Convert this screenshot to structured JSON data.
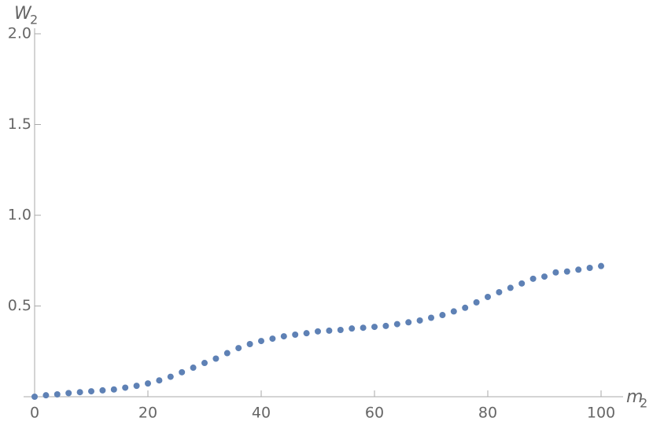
{
  "chart_data": {
    "type": "scatter",
    "xlabel": "m",
    "xlabel_sub": "2",
    "ylabel": "W",
    "ylabel_sub": "2",
    "color": "#5e81b5",
    "x": [
      0,
      2,
      4,
      6,
      8,
      10,
      12,
      14,
      16,
      18,
      20,
      22,
      24,
      26,
      28,
      30,
      32,
      34,
      36,
      38,
      40,
      42,
      44,
      46,
      48,
      50,
      52,
      54,
      56,
      58,
      60,
      62,
      64,
      66,
      68,
      70,
      72,
      74,
      76,
      78,
      80,
      82,
      84,
      86,
      88,
      90,
      92,
      94,
      96,
      98,
      100
    ],
    "values": [
      0,
      0.008,
      0.013,
      0.02,
      0.025,
      0.03,
      0.035,
      0.04,
      0.05,
      0.06,
      0.073,
      0.09,
      0.11,
      0.135,
      0.16,
      0.186,
      0.21,
      0.24,
      0.268,
      0.29,
      0.307,
      0.32,
      0.333,
      0.342,
      0.35,
      0.36,
      0.364,
      0.368,
      0.376,
      0.38,
      0.385,
      0.39,
      0.4,
      0.41,
      0.42,
      0.435,
      0.45,
      0.47,
      0.49,
      0.52,
      0.55,
      0.576,
      0.6,
      0.624,
      0.65,
      0.662,
      0.685,
      0.69,
      0.7,
      0.71,
      0.72
    ],
    "xlim": [
      0,
      100
    ],
    "xticks": [
      0,
      20,
      40,
      60,
      80,
      100
    ],
    "ylim": [
      0,
      2
    ],
    "yticks": [
      0.5,
      {
        "value": 1,
        "label": "1.0"
      },
      1.5,
      {
        "value": 2,
        "label": "2.0"
      }
    ]
  }
}
